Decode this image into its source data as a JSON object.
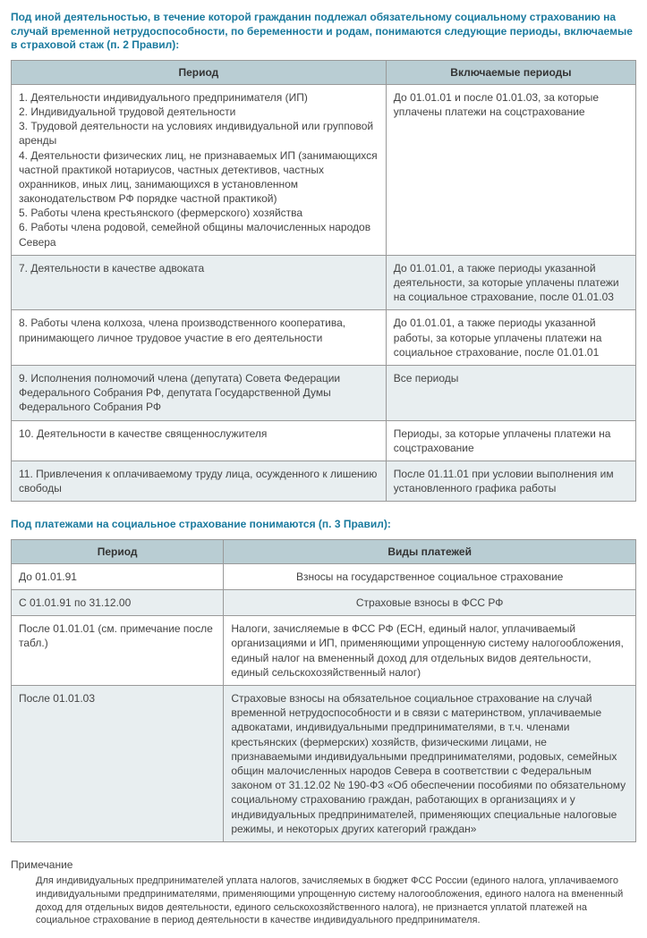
{
  "section1": {
    "title": "Под иной деятельностью, в течение которой гражданин подлежал обязательному социальному страхованию на случай временной нетрудоспособности, по беременности и родам, понимаются следующие периоды, включаемые в страховой стаж (п. 2 Правил):",
    "columns": [
      "Период",
      "Включаемые периоды"
    ],
    "rows": [
      {
        "period": "1. Деятельности индивидуального предпринимателя (ИП)\n2. Индивидуальной трудовой деятельности\n3. Трудовой деятельности на условиях индивидуальной или групповой аренды\n4. Деятельности физических лиц, не признаваемых ИП (занимающихся частной практикой нотариусов, частных детективов, частных охранников, иных лиц, занимающихся в установленном законодательством РФ порядке частной практикой)\n5. Работы члена крестьянского (фермерского) хозяйства\n6. Работы члена родовой, семейной общины малочисленных народов Севера",
        "included": "До 01.01.01 и после 01.01.03, за которые уплачены платежи на соцстрахование",
        "alt": false
      },
      {
        "period": "7. Деятельности в качестве адвоката",
        "included": "До 01.01.01, а также периоды указанной деятельности, за которые уплачены платежи на социальное страхование, после 01.01.03",
        "alt": true
      },
      {
        "period": "8. Работы члена колхоза, члена производственного кооператива, принимающего личное трудовое участие в его деятельности",
        "included": "До 01.01.01, а также периоды указанной работы, за которые уплачены платежи на социальное страхование, после 01.01.01",
        "alt": false
      },
      {
        "period": "9. Исполнения полномочий члена (депутата) Совета Федерации Федерального Собрания РФ, депутата Государственной Думы Федерального Собрания РФ",
        "included": "Все периоды",
        "alt": true
      },
      {
        "period": "10. Деятельности в качестве священнослужителя",
        "included": "Периоды, за которые уплачены платежи на соцстрахование",
        "alt": false
      },
      {
        "period": "11. Привлечения к оплачиваемому труду лица, осужденного к лишению свободы",
        "included": "После 01.11.01 при условии выполнения им установленного графика работы",
        "alt": true
      }
    ]
  },
  "section2": {
    "title": "Под платежами на социальное страхование понимаются (п. 3 Правил):",
    "columns": [
      "Период",
      "Виды платежей"
    ],
    "rows": [
      {
        "period": "До 01.01.91",
        "types": "Взносы на государственное социальное страхование",
        "center": true,
        "alt": false
      },
      {
        "period": "С 01.01.91 по 31.12.00",
        "types": "Страховые взносы в ФСС РФ",
        "center": true,
        "alt": true
      },
      {
        "period": "После 01.01.01 (см. примечание после табл.)",
        "types": "Налоги, зачисляемые в ФСС РФ (ЕСН, единый налог, уплачиваемый организациями и ИП, применяющими упрощенную систему налогообложения, единый налог на вмененный доход для отдельных видов деятельности, единый сельскохозяйственный налог)",
        "center": false,
        "alt": false
      },
      {
        "period": "После 01.01.03",
        "types": "Страховые взносы на обязательное социальное страхование на случай временной нетрудоспособности и в связи с материнством, уплачиваемые адвокатами, индивидуальными предпринимателями, в т.ч. членами крестьянских (фермерских) хозяйств, физическими лицами, не признаваемыми индивидуальными предпринимателями, родовых, семейных общин малочисленных народов Севера в соответствии с Федеральным законом от 31.12.02 № 190-ФЗ «Об обеспечении пособиями по обязательному социальному страхованию граждан, работающих в организациях и у индивидуальных предпринимателей, применяющих специальные налоговые режимы, и некоторых других категорий граждан»",
        "center": false,
        "alt": true
      }
    ]
  },
  "note": {
    "label": "Примечание",
    "body": "Для индивидуальных предпринимателей уплата налогов, зачисляемых в бюджет ФСС России (единого налога, уплачиваемого индивидуальными предпринимателями, применяющими упрощенную систему налогообложения, единого налога на вмененный доход для отдельных видов деятельности, единого сельскохозяйственного налога), не признается уплатой платежей на социальное страхование в период деятельности в качестве индивидуального предпринимателя."
  }
}
